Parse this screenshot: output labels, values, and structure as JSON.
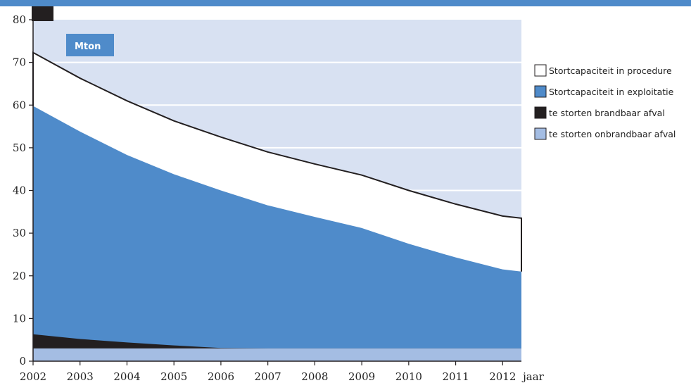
{
  "chart_data": {
    "type": "area",
    "unit_label": "Mton",
    "xlabel": "jaar",
    "ylabel": "",
    "x": [
      2002,
      2003,
      2004,
      2005,
      2006,
      2007,
      2008,
      2009,
      2010,
      2011,
      2012,
      2012.4
    ],
    "xticks": [
      2002,
      2003,
      2004,
      2005,
      2006,
      2007,
      2008,
      2009,
      2010,
      2011,
      2012
    ],
    "xtick_labels": [
      "2002",
      "2003",
      "2004",
      "2005",
      "2006",
      "2007",
      "2008",
      "2009",
      "2010",
      "2011",
      "2012"
    ],
    "ylim": [
      0,
      80
    ],
    "yticks": [
      0,
      10,
      20,
      30,
      40,
      50,
      60,
      70,
      80
    ],
    "ytick_labels": [
      "0",
      "10",
      "20",
      "30",
      "40",
      "50",
      "60",
      "70",
      "80"
    ],
    "grid": true,
    "legend_position": "right",
    "series": [
      {
        "name": "Stortcapaciteit in procedure",
        "color": "#ffffff",
        "values": [
          72.3,
          66.3,
          61.0,
          56.3,
          52.5,
          49.0,
          46.2,
          43.6,
          40.0,
          36.8,
          34.0,
          33.5
        ]
      },
      {
        "name": "Stortcapaciteit in exploitatie",
        "color": "#4f8bca",
        "values": [
          59.8,
          53.8,
          48.3,
          43.8,
          40.0,
          36.5,
          33.8,
          31.2,
          27.5,
          24.3,
          21.5,
          21.0
        ]
      },
      {
        "name": "te storten brandbaar afval",
        "color": "#231f20",
        "values": [
          6.3,
          5.2,
          4.4,
          3.7,
          3.1,
          3.0,
          3.0,
          3.0,
          3.0,
          3.0,
          3.0,
          3.0
        ]
      },
      {
        "name": "te storten onbrandbaar afval",
        "color": "#a4bde3",
        "values": [
          3.0,
          3.0,
          3.0,
          3.0,
          3.0,
          3.0,
          3.0,
          3.0,
          3.0,
          3.0,
          3.0,
          3.0
        ]
      }
    ],
    "plot_background_color": "#d8e1f2"
  }
}
